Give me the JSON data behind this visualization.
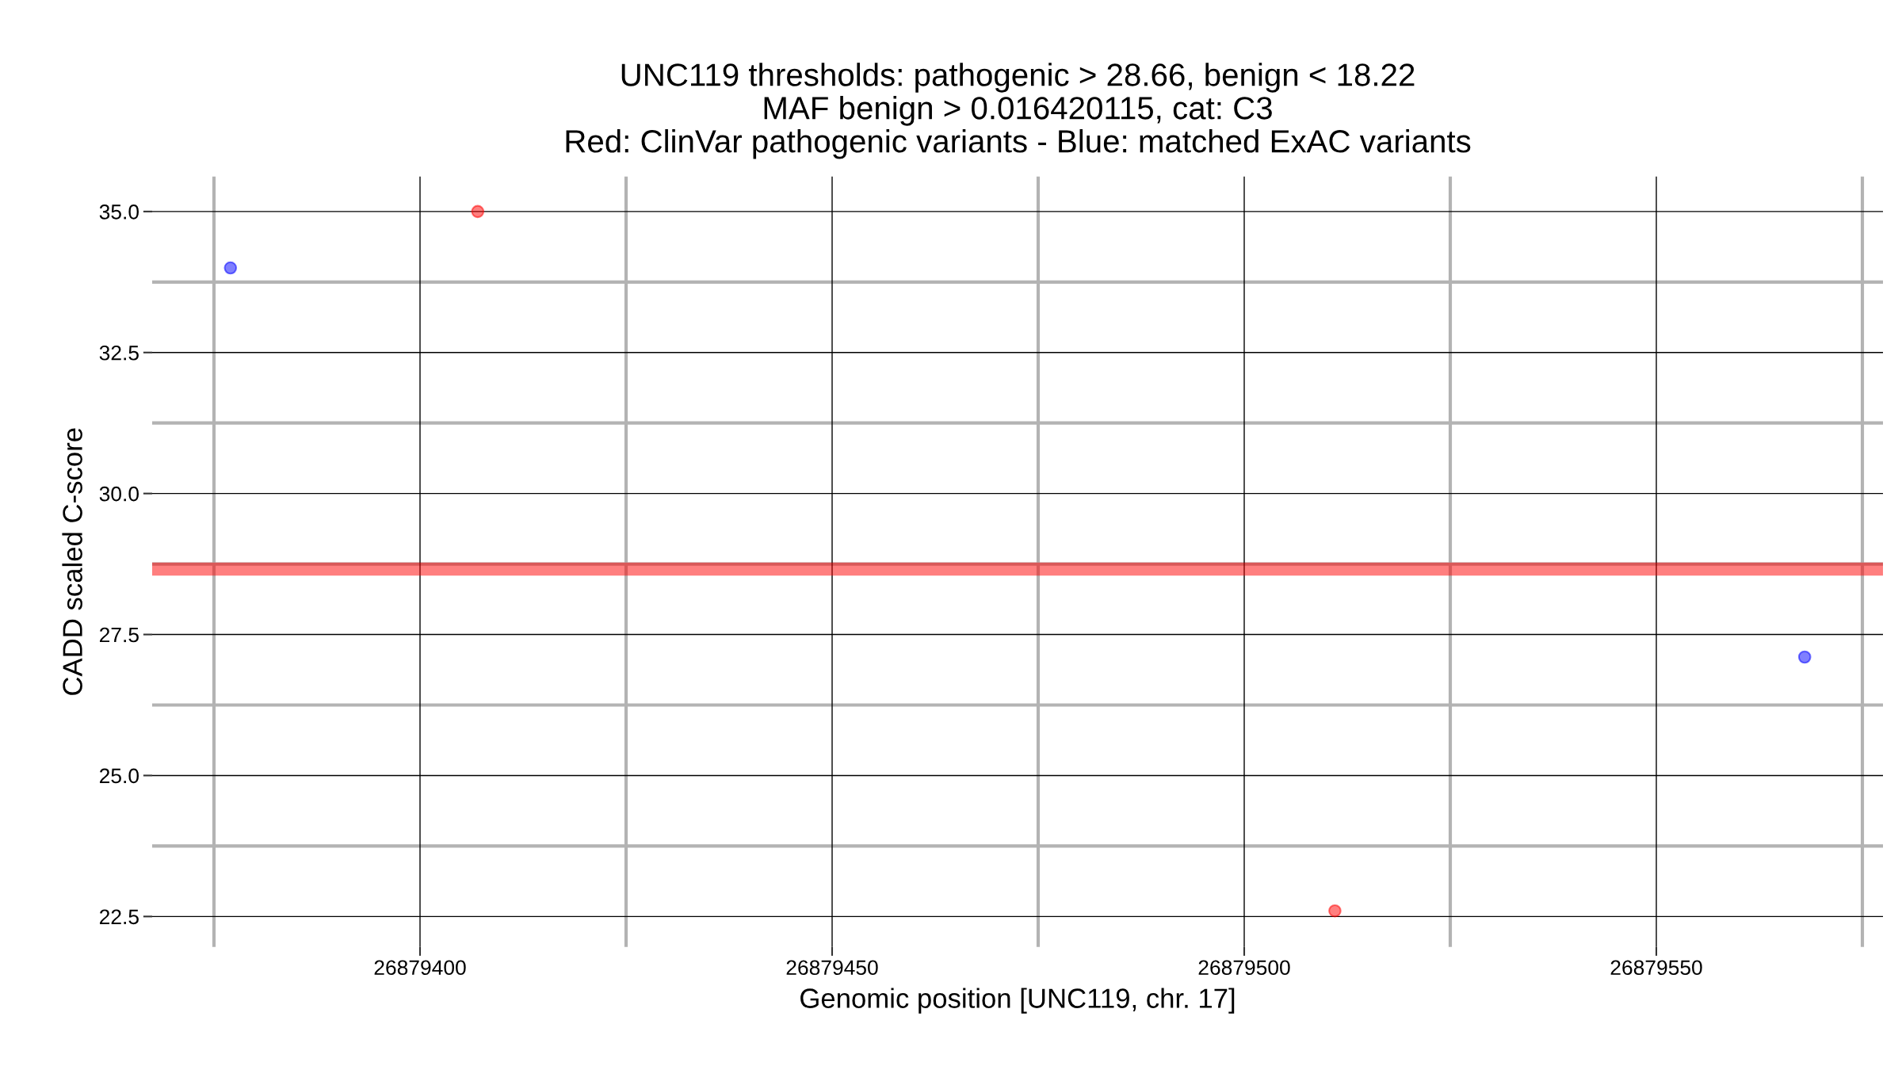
{
  "chart_data": {
    "type": "scatter",
    "title": "UNC119 thresholds: pathogenic > 28.66, benign < 18.22\nMAF benign > 0.016420115, cat: C3\nRed: ClinVar pathogenic variants - Blue: matched ExAC variants",
    "xlabel": "Genomic position [UNC119, chr. 17]",
    "ylabel": "CADD scaled C-score",
    "series": [
      {
        "color": "#ff0000",
        "x": [
          26879407,
          26879511
        ],
        "values": [
          35.0,
          22.6
        ]
      },
      {
        "color": "#0000ff",
        "x": [
          26879377,
          26879568
        ],
        "values": [
          34.0,
          27.1
        ]
      }
    ],
    "ref_lines": [
      {
        "axis": "y",
        "value": 28.66,
        "color": "#ff0000"
      }
    ],
    "xlim": [
      26879367.5,
      26879577.5
    ],
    "xticks": [
      26879400,
      26879450,
      26879500,
      26879550
    ],
    "ylim": [
      21.96,
      35.62
    ],
    "yticks": [
      {
        "value": 22.5,
        "label": "22.5"
      },
      {
        "value": 25.0,
        "label": "25.0"
      },
      {
        "value": 27.5,
        "label": "27.5"
      },
      {
        "value": 30.0,
        "label": "30.0"
      },
      {
        "value": 32.5,
        "label": "32.5"
      },
      {
        "value": 35.0,
        "label": "35.0"
      }
    ],
    "grid": true,
    "marker": "circle",
    "legend": false
  }
}
